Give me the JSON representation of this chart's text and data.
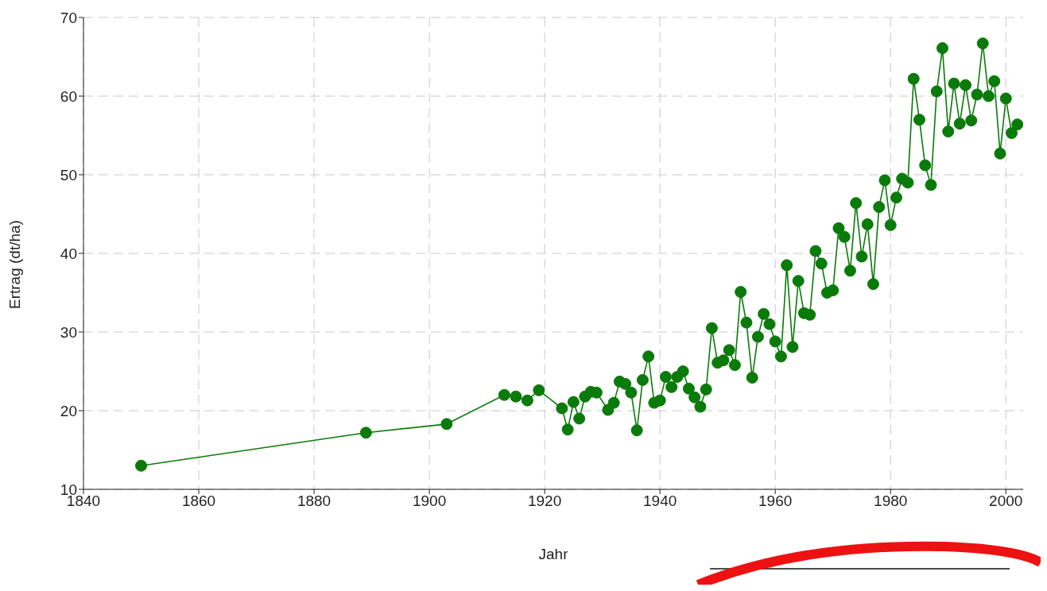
{
  "chart_data": {
    "type": "line",
    "xlabel": "Jahr",
    "ylabel": "Ertrag (dt/ha)",
    "x": [
      1850,
      1889,
      1903,
      1913,
      1915,
      1917,
      1919,
      1923,
      1924,
      1925,
      1926,
      1927,
      1928,
      1929,
      1931,
      1932,
      1933,
      1934,
      1935,
      1936,
      1937,
      1938,
      1939,
      1940,
      1941,
      1942,
      1943,
      1944,
      1945,
      1946,
      1947,
      1948,
      1949,
      1950,
      1951,
      1952,
      1953,
      1954,
      1955,
      1956,
      1957,
      1958,
      1959,
      1960,
      1961,
      1962,
      1963,
      1964,
      1965,
      1966,
      1967,
      1968,
      1969,
      1970,
      1971,
      1972,
      1973,
      1974,
      1975,
      1976,
      1977,
      1978,
      1979,
      1980,
      1981,
      1982,
      1983,
      1984,
      1985,
      1986,
      1987,
      1988,
      1989,
      1990,
      1991,
      1992,
      1993,
      1994,
      1995,
      1996,
      1997,
      1998,
      1999,
      2000,
      2001,
      2002
    ],
    "series": [
      {
        "color": "#0a7a0a",
        "values": [
          13.0,
          17.2,
          18.3,
          22.0,
          21.8,
          21.3,
          22.6,
          20.3,
          17.6,
          21.1,
          19.0,
          21.8,
          22.4,
          22.3,
          20.1,
          21.0,
          23.7,
          23.4,
          22.3,
          17.5,
          23.9,
          26.9,
          21.0,
          21.3,
          24.3,
          23.0,
          24.3,
          25.0,
          22.8,
          21.7,
          20.5,
          22.7,
          30.5,
          26.1,
          26.4,
          27.7,
          25.8,
          35.1,
          31.2,
          24.2,
          29.4,
          32.3,
          31.0,
          28.8,
          26.9,
          38.5,
          28.1,
          36.5,
          32.4,
          32.2,
          40.3,
          38.7,
          35.0,
          35.3,
          43.2,
          42.1,
          37.8,
          46.4,
          39.6,
          43.7,
          36.1,
          45.9,
          49.3,
          43.6,
          47.1,
          49.5,
          49.0,
          62.2,
          57.0,
          51.2,
          48.7,
          60.6,
          66.1,
          55.5,
          61.6,
          56.5,
          61.4,
          56.9,
          60.2,
          66.7,
          60.0,
          61.9,
          52.7,
          59.7,
          55.3,
          56.4
        ]
      }
    ],
    "xlim": [
      1840,
      2003
    ],
    "xticks": [
      1840,
      1860,
      1880,
      1900,
      1920,
      1940,
      1960,
      1980,
      2000
    ],
    "ylim": [
      10,
      70
    ],
    "yticks": [
      10,
      20,
      30,
      40,
      50,
      60,
      70
    ],
    "grid": true,
    "marker": "circle",
    "line_style": "solid"
  }
}
